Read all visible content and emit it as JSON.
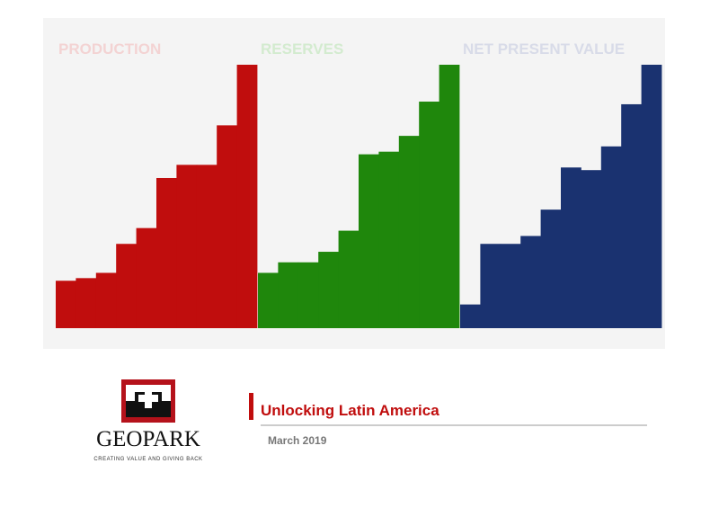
{
  "panels": [
    {
      "title": "PRODUCTION",
      "title_color": "#f3d3d3",
      "color": "#c00d0d",
      "values": [
        18,
        19,
        21,
        32,
        38,
        57,
        62,
        62,
        77,
        100
      ]
    },
    {
      "title": "RESERVES",
      "title_color": "#d3ebcf",
      "color": "#1f870c",
      "values": [
        21,
        25,
        25,
        29,
        37,
        66,
        67,
        73,
        86,
        100
      ]
    },
    {
      "title": "NET PRESENT VALUE",
      "title_color": "#d8dbe8",
      "color": "#1a3270",
      "values": [
        9,
        32,
        32,
        35,
        45,
        61,
        60,
        69,
        85,
        100
      ]
    }
  ],
  "logo": {
    "name": "GEOPARK",
    "tagline": "CREATING VALUE AND GIVING BACK"
  },
  "header": {
    "title": "Unlocking Latin America",
    "date": "March 2019"
  }
}
